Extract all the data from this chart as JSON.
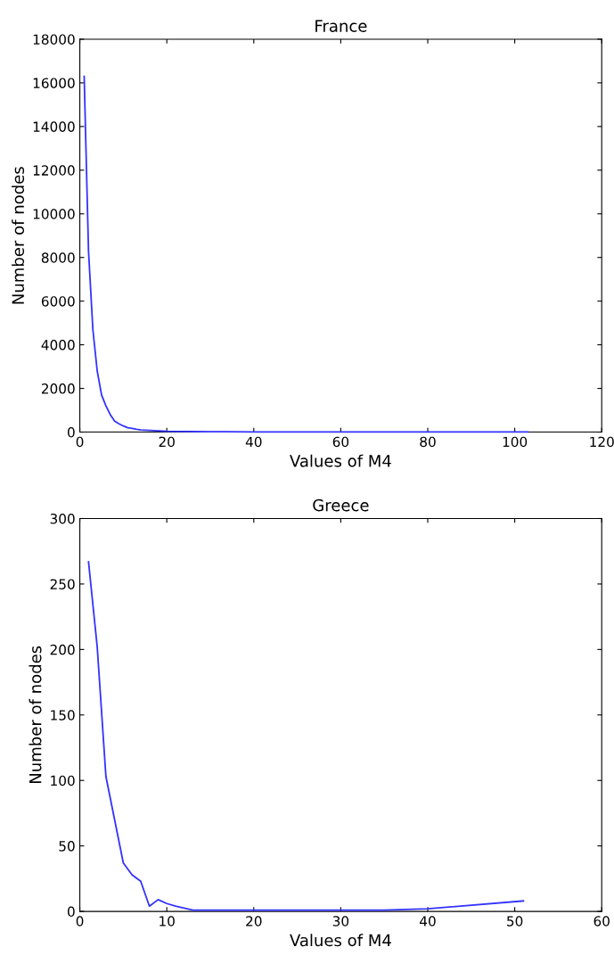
{
  "chart_data": [
    {
      "type": "line",
      "title": "France",
      "xlabel": "Values of M4",
      "ylabel": "Number of nodes",
      "series": [
        {
          "color": "#3333ff",
          "x": [
            1,
            2,
            3,
            4,
            5,
            6,
            7,
            8,
            9,
            10,
            11,
            12,
            13,
            14,
            15,
            17,
            20,
            25,
            30,
            40,
            50,
            60,
            80,
            103
          ],
          "values": [
            16300,
            8300,
            4700,
            2800,
            1700,
            1200,
            800,
            500,
            380,
            280,
            200,
            170,
            130,
            100,
            90,
            70,
            40,
            30,
            20,
            10,
            10,
            10,
            10,
            10
          ]
        }
      ],
      "xlim": [
        0,
        120
      ],
      "xticks": [
        0,
        20,
        40,
        60,
        80,
        100,
        120
      ],
      "ylim": [
        0,
        18000
      ],
      "yticks": [
        0,
        2000,
        4000,
        6000,
        8000,
        10000,
        12000,
        14000,
        16000,
        18000
      ],
      "grid": false
    },
    {
      "type": "line",
      "title": "Greece",
      "xlabel": "Values of M4",
      "ylabel": "Number of nodes",
      "series": [
        {
          "color": "#3333ff",
          "x": [
            1,
            2,
            3,
            4,
            5,
            6,
            7,
            8,
            9,
            10,
            11,
            13,
            35,
            40,
            51
          ],
          "values": [
            267,
            202,
            103,
            70,
            37,
            28,
            23,
            4,
            9,
            6,
            4,
            1,
            1,
            2,
            8
          ]
        }
      ],
      "xlim": [
        0,
        60
      ],
      "xticks": [
        0,
        10,
        20,
        30,
        40,
        50,
        60
      ],
      "ylim": [
        0,
        300
      ],
      "yticks": [
        0,
        50,
        100,
        150,
        200,
        250,
        300
      ],
      "grid": false
    }
  ]
}
